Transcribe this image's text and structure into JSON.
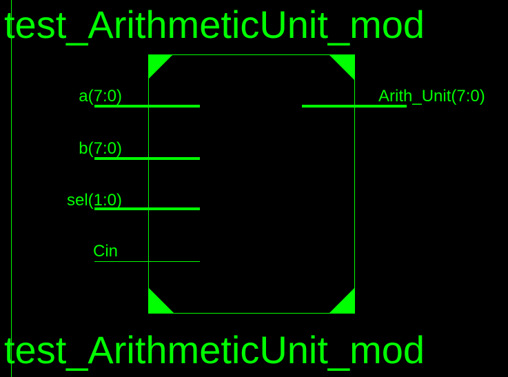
{
  "symbol": {
    "title_top": "test_ArithmeticUnit_mod",
    "title_bottom": "test_ArithmeticUnit_mod",
    "inputs": [
      {
        "label": "a(7:0)",
        "bus": true
      },
      {
        "label": "b(7:0)",
        "bus": true
      },
      {
        "label": "sel(1:0)",
        "bus": true
      },
      {
        "label": "Cin",
        "bus": false
      }
    ],
    "outputs": [
      {
        "label": "Arith_Unit(7:0)",
        "bus": true
      }
    ]
  },
  "colors": {
    "background": "#000000",
    "foreground": "#00ff00"
  }
}
